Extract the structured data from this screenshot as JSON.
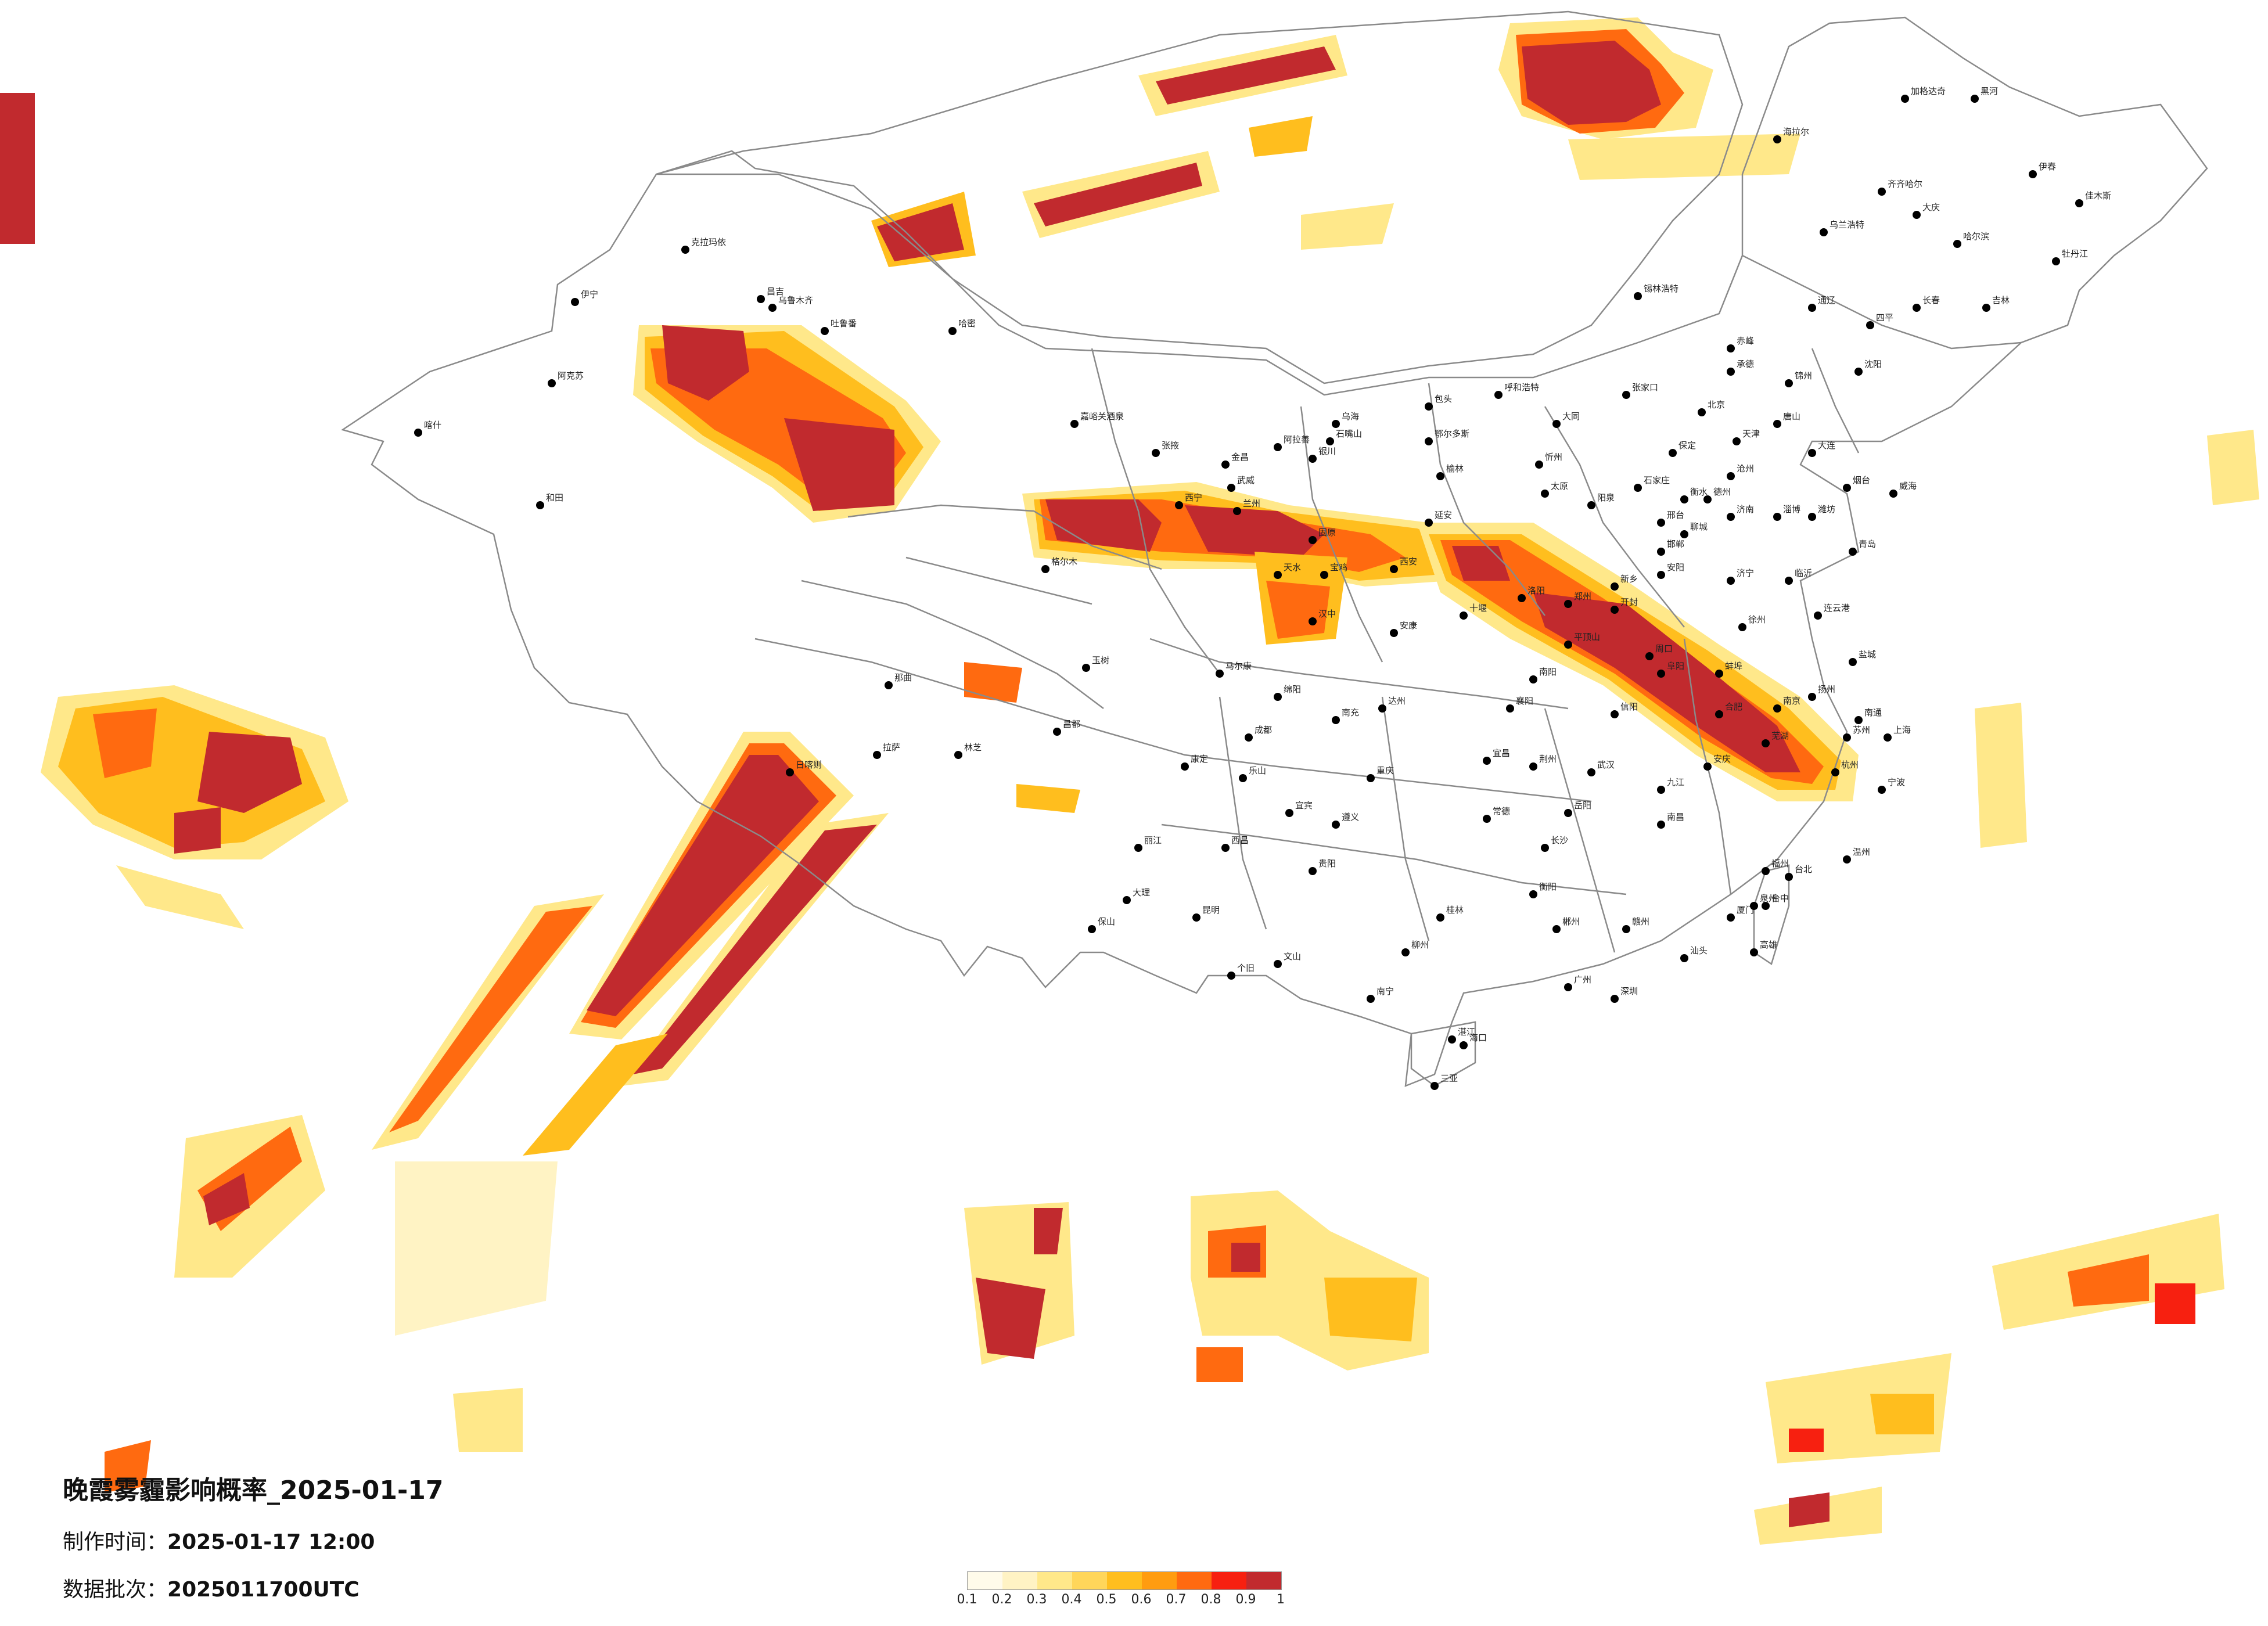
{
  "title": "晚霞雾霾影响概率_2025-01-17",
  "meta": [
    {
      "label": "制作时间：",
      "value": "2025-01-17 12:00"
    },
    {
      "label": "数据批次：",
      "value": "2025011700UTC"
    }
  ],
  "legend": {
    "ticks": [
      "0.1",
      "0.2",
      "0.3",
      "0.4",
      "0.5",
      "0.6",
      "0.7",
      "0.8",
      "0.9",
      "1"
    ],
    "colors": [
      "#fffbea",
      "#fff3c4",
      "#ffe88a",
      "#ffd65a",
      "#ffbe1e",
      "#ff9c10",
      "#ff6a10",
      "#f72010",
      "#c12a2e"
    ]
  },
  "colors": {
    "border": "#8a8a8a",
    "city_dot": "#000000",
    "p03": "#ffe88a",
    "p05": "#ffbe1e",
    "p07": "#ff6a10",
    "p09": "#c12a2e"
  },
  "cities": [
    {
      "name": "克拉玛依"
    },
    {
      "name": "伊宁"
    },
    {
      "name": "昌吉"
    },
    {
      "name": "乌鲁木齐"
    },
    {
      "name": "吐鲁番"
    },
    {
      "name": "哈密"
    },
    {
      "name": "阿克苏"
    },
    {
      "name": "喀什"
    },
    {
      "name": "和田"
    },
    {
      "name": "嘉峪关酒泉"
    },
    {
      "name": "张掖"
    },
    {
      "name": "金昌"
    },
    {
      "name": "武威"
    },
    {
      "name": "西宁"
    },
    {
      "name": "兰州"
    },
    {
      "name": "银川"
    },
    {
      "name": "石嘴山"
    },
    {
      "name": "乌海"
    },
    {
      "name": "包头"
    },
    {
      "name": "呼和浩特"
    },
    {
      "name": "鄂尔多斯"
    },
    {
      "name": "榆林"
    },
    {
      "name": "延安"
    },
    {
      "name": "西安"
    },
    {
      "name": "宝鸡"
    },
    {
      "name": "天水"
    },
    {
      "name": "固原"
    },
    {
      "name": "汉中"
    },
    {
      "name": "安康"
    },
    {
      "name": "十堰"
    },
    {
      "name": "太原"
    },
    {
      "name": "大同"
    },
    {
      "name": "忻州"
    },
    {
      "name": "阳泉"
    },
    {
      "name": "石家庄"
    },
    {
      "name": "保定"
    },
    {
      "name": "北京"
    },
    {
      "name": "天津"
    },
    {
      "name": "唐山"
    },
    {
      "name": "张家口"
    },
    {
      "name": "承德"
    },
    {
      "name": "沧州"
    },
    {
      "name": "衡水"
    },
    {
      "name": "邢台"
    },
    {
      "name": "邯郸"
    },
    {
      "name": "安阳"
    },
    {
      "name": "新乡"
    },
    {
      "name": "郑州"
    },
    {
      "name": "开封"
    },
    {
      "name": "洛阳"
    },
    {
      "name": "平顶山"
    },
    {
      "name": "南阳"
    },
    {
      "name": "信阳"
    },
    {
      "name": "周口"
    },
    {
      "name": "济南"
    },
    {
      "name": "淄博"
    },
    {
      "name": "潍坊"
    },
    {
      "name": "青岛"
    },
    {
      "name": "烟台"
    },
    {
      "name": "威海"
    },
    {
      "name": "临沂"
    },
    {
      "name": "济宁"
    },
    {
      "name": "聊城"
    },
    {
      "name": "德州"
    },
    {
      "name": "徐州"
    },
    {
      "name": "连云港"
    },
    {
      "name": "盐城"
    },
    {
      "name": "南京"
    },
    {
      "name": "扬州"
    },
    {
      "name": "南通"
    },
    {
      "name": "苏州"
    },
    {
      "name": "上海"
    },
    {
      "name": "杭州"
    },
    {
      "name": "宁波"
    },
    {
      "name": "温州"
    },
    {
      "name": "合肥"
    },
    {
      "name": "蚌埠"
    },
    {
      "name": "阜阳"
    },
    {
      "name": "芜湖"
    },
    {
      "name": "安庆"
    },
    {
      "name": "武汉"
    },
    {
      "name": "宜昌"
    },
    {
      "name": "荆州"
    },
    {
      "name": "襄阳"
    },
    {
      "name": "长沙"
    },
    {
      "name": "岳阳"
    },
    {
      "name": "常德"
    },
    {
      "name": "衡阳"
    },
    {
      "name": "郴州"
    },
    {
      "name": "南昌"
    },
    {
      "name": "九江"
    },
    {
      "name": "赣州"
    },
    {
      "name": "福州"
    },
    {
      "name": "厦门"
    },
    {
      "name": "泉州"
    },
    {
      "name": "广州"
    },
    {
      "name": "深圳"
    },
    {
      "name": "汕头"
    },
    {
      "name": "湛江"
    },
    {
      "name": "南宁"
    },
    {
      "name": "桂林"
    },
    {
      "name": "柳州"
    },
    {
      "name": "海口"
    },
    {
      "name": "三亚"
    },
    {
      "name": "贵阳"
    },
    {
      "name": "遵义"
    },
    {
      "name": "昆明"
    },
    {
      "name": "大理"
    },
    {
      "name": "丽江"
    },
    {
      "name": "保山"
    },
    {
      "name": "个旧"
    },
    {
      "name": "文山"
    },
    {
      "name": "成都"
    },
    {
      "name": "绵阳"
    },
    {
      "name": "南充"
    },
    {
      "name": "达州"
    },
    {
      "name": "重庆"
    },
    {
      "name": "宜宾"
    },
    {
      "name": "乐山"
    },
    {
      "name": "西昌"
    },
    {
      "name": "康定"
    },
    {
      "name": "马尔康"
    },
    {
      "name": "玉树"
    },
    {
      "name": "格尔木"
    },
    {
      "name": "拉萨"
    },
    {
      "name": "日喀则"
    },
    {
      "name": "林芝"
    },
    {
      "name": "那曲"
    },
    {
      "name": "昌都"
    },
    {
      "name": "哈尔滨"
    },
    {
      "name": "齐齐哈尔"
    },
    {
      "name": "大庆"
    },
    {
      "name": "牡丹江"
    },
    {
      "name": "佳木斯"
    },
    {
      "name": "伊春"
    },
    {
      "name": "黑河"
    },
    {
      "name": "长春"
    },
    {
      "name": "吉林"
    },
    {
      "name": "四平"
    },
    {
      "name": "通辽"
    },
    {
      "name": "沈阳"
    },
    {
      "name": "大连"
    },
    {
      "name": "锦州"
    },
    {
      "name": "赤峰"
    },
    {
      "name": "海拉尔"
    },
    {
      "name": "加格达奇"
    },
    {
      "name": "乌兰浩特"
    },
    {
      "name": "锡林浩特"
    },
    {
      "name": "台北"
    },
    {
      "name": "台中"
    },
    {
      "name": "高雄"
    },
    {
      "name": "阿拉善"
    }
  ]
}
